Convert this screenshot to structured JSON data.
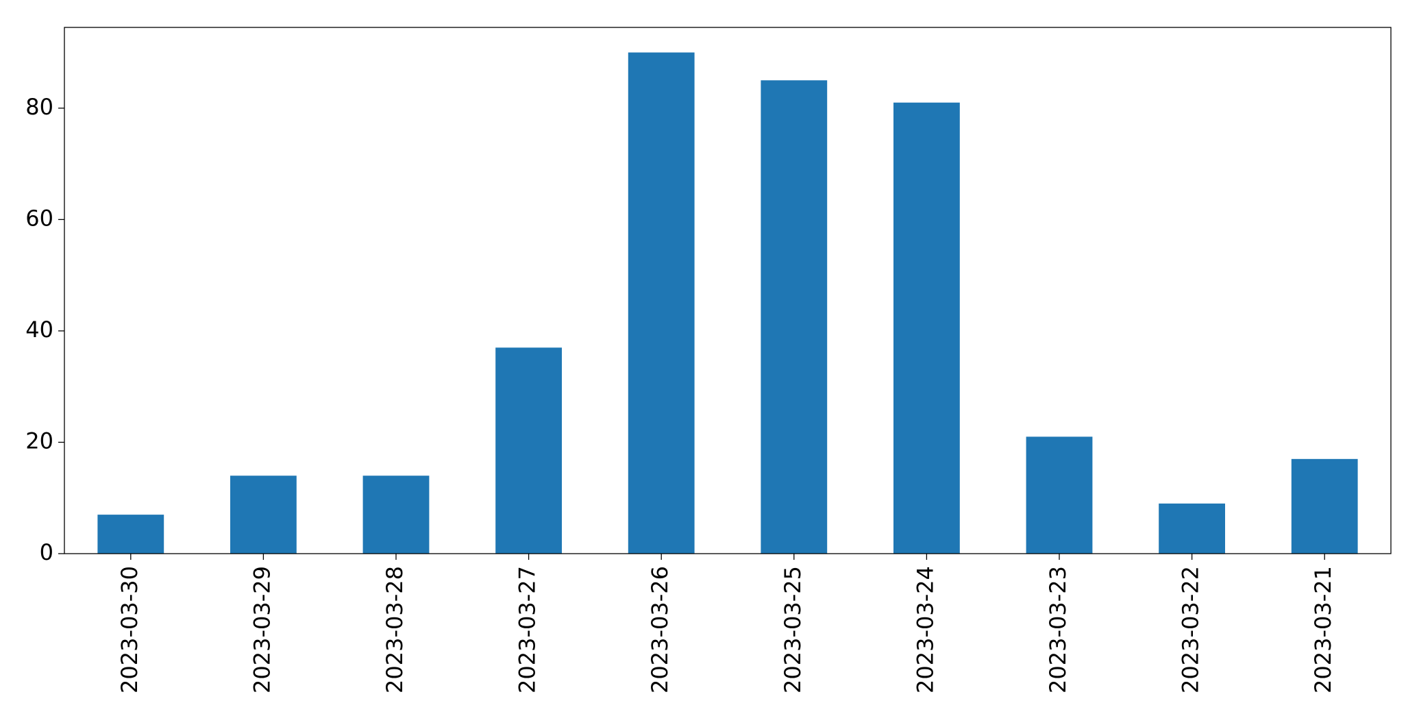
{
  "chart_data": {
    "type": "bar",
    "categories": [
      "2023-03-30",
      "2023-03-29",
      "2023-03-28",
      "2023-03-27",
      "2023-03-26",
      "2023-03-25",
      "2023-03-24",
      "2023-03-23",
      "2023-03-22",
      "2023-03-21"
    ],
    "values": [
      7,
      14,
      14,
      37,
      90,
      85,
      81,
      21,
      9,
      17
    ],
    "color": "#1f77b4",
    "ylim": [
      0,
      94.5
    ],
    "yticks": [
      0,
      20,
      40,
      60,
      80
    ],
    "grid": false
  }
}
